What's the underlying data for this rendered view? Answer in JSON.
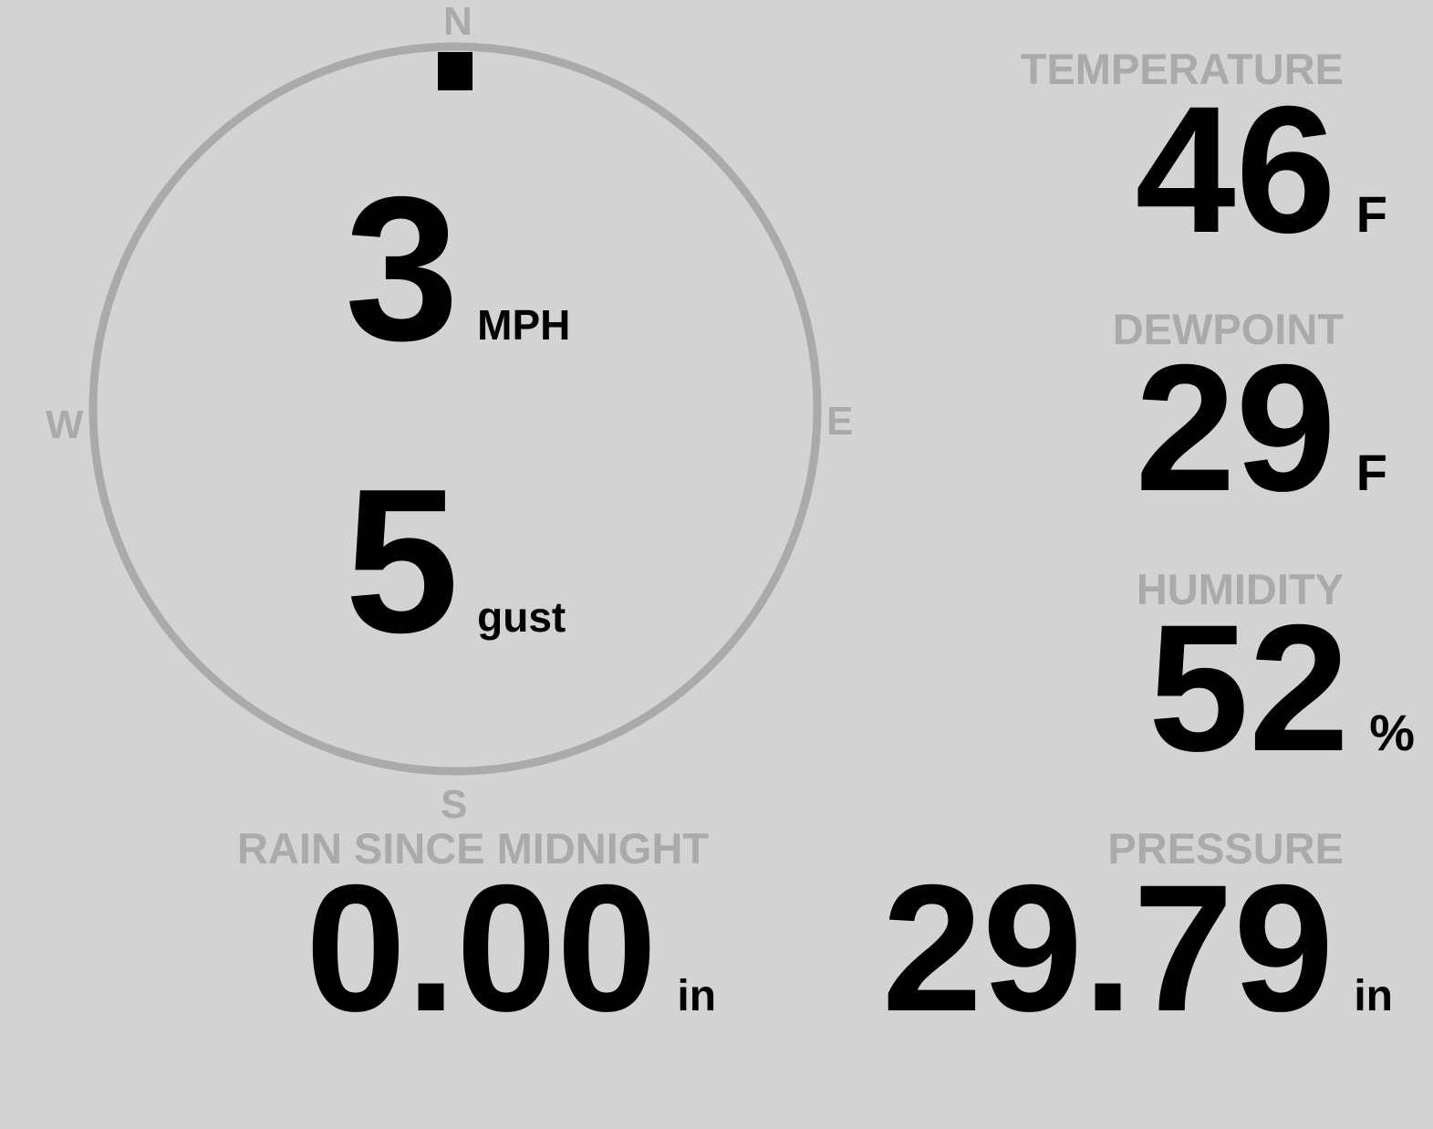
{
  "wind": {
    "speed": "3",
    "speed_unit": "MPH",
    "gust": "5",
    "gust_label": "gust",
    "direction_degrees": 0,
    "compass": {
      "n": "N",
      "e": "E",
      "s": "S",
      "w": "W"
    }
  },
  "temperature": {
    "label": "TEMPERATURE",
    "value": "46",
    "unit": "F"
  },
  "dewpoint": {
    "label": "DEWPOINT",
    "value": "29",
    "unit": "F"
  },
  "humidity": {
    "label": "HUMIDITY",
    "value": "52",
    "unit": "%"
  },
  "rain": {
    "label": "RAIN SINCE MIDNIGHT",
    "value": "0.00",
    "unit": "in"
  },
  "pressure": {
    "label": "PRESSURE",
    "value": "29.79",
    "unit": "in"
  },
  "colors": {
    "background": "#d3d3d3",
    "label": "#aaaaaa",
    "value": "#000000",
    "dial": "#aaaaaa"
  }
}
